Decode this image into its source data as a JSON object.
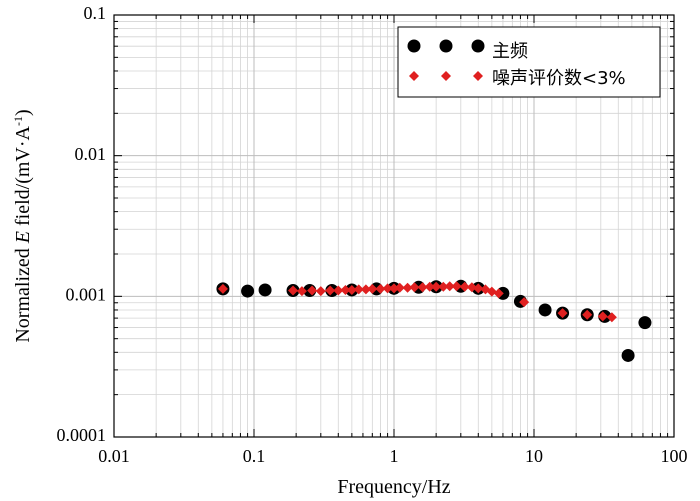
{
  "chart_data": {
    "type": "scatter",
    "xlabel": "Frequency/Hz",
    "ylabel_parts": [
      "Normalized ",
      "E",
      " field/(mV·A",
      "-1",
      ")"
    ],
    "xscale": "log",
    "yscale": "log",
    "xlim": [
      0.01,
      100
    ],
    "ylim": [
      0.0001,
      0.1
    ],
    "grid": true,
    "legend_position": "top-right",
    "x_ticks": [
      {
        "value": 0.01,
        "label": "0.01"
      },
      {
        "value": 0.1,
        "label": "0.1"
      },
      {
        "value": 1,
        "label": "1"
      },
      {
        "value": 10,
        "label": "10"
      },
      {
        "value": 100,
        "label": "100"
      }
    ],
    "y_ticks": [
      {
        "value": 0.0001,
        "label": "0.0001"
      },
      {
        "value": 0.001,
        "label": "0.001"
      },
      {
        "value": 0.01,
        "label": "0.01"
      },
      {
        "value": 0.1,
        "label": "0.1"
      }
    ],
    "series": [
      {
        "name": "主频",
        "marker": "circle",
        "color": "#000000",
        "points": [
          [
            0.06,
            0.00113
          ],
          [
            0.09,
            0.00109
          ],
          [
            0.12,
            0.00111
          ],
          [
            0.19,
            0.0011
          ],
          [
            0.25,
            0.0011
          ],
          [
            0.36,
            0.0011
          ],
          [
            0.5,
            0.00111
          ],
          [
            0.75,
            0.00113
          ],
          [
            1.0,
            0.00114
          ],
          [
            1.5,
            0.00116
          ],
          [
            2.0,
            0.00117
          ],
          [
            3.0,
            0.00118
          ],
          [
            4.0,
            0.00114
          ],
          [
            6.0,
            0.00105
          ],
          [
            8.0,
            0.00092
          ],
          [
            12.0,
            0.0008
          ],
          [
            16.0,
            0.00076
          ],
          [
            24.0,
            0.00074
          ],
          [
            32.0,
            0.00072
          ],
          [
            47.0,
            0.00038
          ],
          [
            62.0,
            0.00065
          ]
        ]
      },
      {
        "name": "噪声评价数<3%",
        "marker": "diamond",
        "color": "#e02020",
        "points": [
          [
            0.06,
            0.00113
          ],
          [
            0.19,
            0.0011
          ],
          [
            0.22,
            0.00109
          ],
          [
            0.26,
            0.0011
          ],
          [
            0.3,
            0.00109
          ],
          [
            0.35,
            0.0011
          ],
          [
            0.4,
            0.0011
          ],
          [
            0.45,
            0.00111
          ],
          [
            0.5,
            0.00111
          ],
          [
            0.56,
            0.00112
          ],
          [
            0.63,
            0.00112
          ],
          [
            0.7,
            0.00113
          ],
          [
            0.8,
            0.00113
          ],
          [
            0.9,
            0.00114
          ],
          [
            1.0,
            0.00114
          ],
          [
            1.1,
            0.00115
          ],
          [
            1.25,
            0.00115
          ],
          [
            1.4,
            0.00116
          ],
          [
            1.6,
            0.00116
          ],
          [
            1.8,
            0.00117
          ],
          [
            2.0,
            0.00117
          ],
          [
            2.25,
            0.00117
          ],
          [
            2.5,
            0.00118
          ],
          [
            2.8,
            0.00118
          ],
          [
            3.2,
            0.00117
          ],
          [
            3.6,
            0.00116
          ],
          [
            4.0,
            0.00114
          ],
          [
            4.5,
            0.00112
          ],
          [
            5.0,
            0.00108
          ],
          [
            5.6,
            0.00105
          ],
          [
            8.5,
            0.00091
          ],
          [
            16.0,
            0.00076
          ],
          [
            24.0,
            0.00074
          ],
          [
            31.0,
            0.00072
          ],
          [
            36.0,
            0.00071
          ]
        ]
      }
    ]
  }
}
